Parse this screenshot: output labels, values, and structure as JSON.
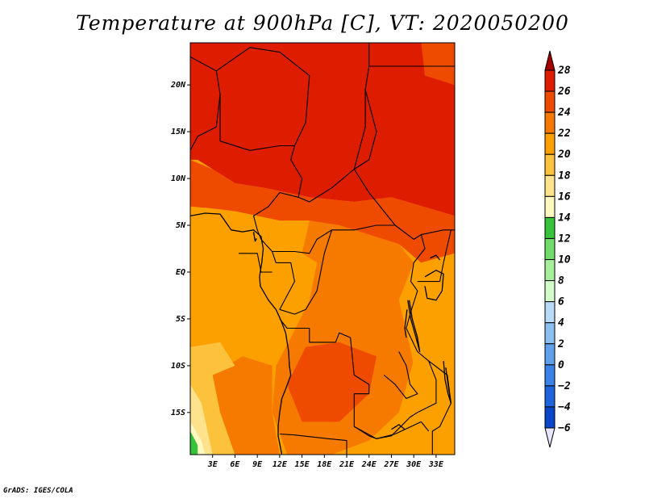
{
  "title": "Temperature at 900hPa [C], VT: 2020050200",
  "credit": "GrADS: IGES/COLA",
  "map": {
    "lon_range": [
      0,
      35.5
    ],
    "lat_range": [
      -19.5,
      24.5
    ],
    "lat_ticks": [
      {
        "value": 20,
        "label": "20N"
      },
      {
        "value": 15,
        "label": "15N"
      },
      {
        "value": 10,
        "label": "10N"
      },
      {
        "value": 5,
        "label": "5N"
      },
      {
        "value": 0,
        "label": "EQ"
      },
      {
        "value": -5,
        "label": "5S"
      },
      {
        "value": -10,
        "label": "10S"
      },
      {
        "value": -15,
        "label": "15S"
      }
    ],
    "lon_ticks": [
      {
        "value": 3,
        "label": "3E"
      },
      {
        "value": 6,
        "label": "6E"
      },
      {
        "value": 9,
        "label": "9E"
      },
      {
        "value": 12,
        "label": "12E"
      },
      {
        "value": 15,
        "label": "15E"
      },
      {
        "value": 18,
        "label": "18E"
      },
      {
        "value": 21,
        "label": "21E"
      },
      {
        "value": 24,
        "label": "24E"
      },
      {
        "value": 27,
        "label": "27E"
      },
      {
        "value": 30,
        "label": "30E"
      },
      {
        "value": 33,
        "label": "33E"
      }
    ],
    "field_regions": [
      {
        "level": 27,
        "points": [
          [
            0,
            24.5
          ],
          [
            35.5,
            24.5
          ],
          [
            35.5,
            6
          ],
          [
            27,
            8
          ],
          [
            22,
            7.5
          ],
          [
            16,
            8
          ],
          [
            13,
            8.5
          ],
          [
            10,
            9
          ],
          [
            6,
            9.5
          ],
          [
            3,
            11
          ],
          [
            1,
            12
          ],
          [
            0,
            12
          ]
        ]
      },
      {
        "level": 25,
        "points": [
          [
            0,
            12
          ],
          [
            3,
            11
          ],
          [
            6,
            9.5
          ],
          [
            10,
            9
          ],
          [
            13,
            8.5
          ],
          [
            16,
            8
          ],
          [
            22,
            7.5
          ],
          [
            27,
            8
          ],
          [
            35.5,
            6
          ],
          [
            35.5,
            2
          ],
          [
            31,
            1
          ],
          [
            28,
            3
          ],
          [
            24,
            4
          ],
          [
            20,
            5
          ],
          [
            16,
            5.5
          ],
          [
            12,
            5.5
          ],
          [
            9,
            6
          ],
          [
            6,
            6.5
          ],
          [
            3,
            6.8
          ],
          [
            0,
            7
          ]
        ]
      },
      {
        "level": 25,
        "points": [
          [
            31,
            24.5
          ],
          [
            35.5,
            24.5
          ],
          [
            35.5,
            20
          ],
          [
            31.5,
            21
          ]
        ]
      },
      {
        "level": 23,
        "points": [
          [
            16,
            5.5
          ],
          [
            20,
            5
          ],
          [
            24,
            4
          ],
          [
            28,
            3
          ],
          [
            30,
            1
          ],
          [
            28,
            -3
          ],
          [
            30.5,
            -8
          ],
          [
            28,
            -15
          ],
          [
            24,
            -18
          ],
          [
            19,
            -19.5
          ],
          [
            13,
            -19.5
          ],
          [
            11,
            -15
          ],
          [
            11.5,
            -10
          ],
          [
            13.5,
            -7
          ],
          [
            16,
            -3
          ],
          [
            17,
            1
          ],
          [
            15,
            2
          ],
          [
            12,
            4
          ]
        ]
      },
      {
        "level": 25,
        "points": [
          [
            15.5,
            -8
          ],
          [
            20,
            -7.5
          ],
          [
            25,
            -9
          ],
          [
            24,
            -13
          ],
          [
            20,
            -16
          ],
          [
            15,
            -16
          ],
          [
            13,
            -12
          ]
        ]
      },
      {
        "level": 21,
        "points": [
          [
            0,
            7
          ],
          [
            3,
            6.8
          ],
          [
            6,
            6.5
          ],
          [
            9,
            6
          ],
          [
            12,
            5.5
          ],
          [
            16,
            5.5
          ],
          [
            15,
            2
          ],
          [
            17,
            1
          ],
          [
            16,
            -3
          ],
          [
            13.5,
            -7
          ],
          [
            11.5,
            -10
          ],
          [
            11,
            -15
          ],
          [
            13,
            -19.5
          ],
          [
            6,
            -19.5
          ],
          [
            4,
            -13
          ],
          [
            0,
            -8
          ]
        ]
      },
      {
        "level": 23,
        "points": [
          [
            3,
            -11
          ],
          [
            7,
            -9
          ],
          [
            11,
            -10
          ],
          [
            11,
            -15
          ],
          [
            12,
            -19.5
          ],
          [
            6,
            -19.5
          ],
          [
            4,
            -15
          ]
        ]
      },
      {
        "level": 21,
        "points": [
          [
            28,
            -3
          ],
          [
            30,
            1
          ],
          [
            31,
            1
          ],
          [
            35.5,
            2
          ],
          [
            35.5,
            -19.5
          ],
          [
            31,
            -19.5
          ],
          [
            30.5,
            -12
          ],
          [
            29.5,
            -8
          ]
        ]
      },
      {
        "level": 19,
        "points": [
          [
            0,
            -8
          ],
          [
            4,
            -7.5
          ],
          [
            6,
            -10
          ],
          [
            3,
            -11
          ],
          [
            4,
            -15
          ],
          [
            6,
            -19.5
          ],
          [
            0,
            -19.5
          ]
        ]
      },
      {
        "level": 17,
        "points": [
          [
            0,
            -12
          ],
          [
            1.5,
            -14
          ],
          [
            3,
            -19.5
          ],
          [
            0,
            -19.5
          ]
        ]
      },
      {
        "level": 15,
        "points": [
          [
            0,
            -16
          ],
          [
            1.5,
            -18
          ],
          [
            2,
            -19.5
          ],
          [
            0,
            -19.5
          ]
        ]
      },
      {
        "level": 13,
        "points": [
          [
            0,
            -17
          ],
          [
            1,
            -18.5
          ],
          [
            1,
            -19.5
          ],
          [
            0,
            -19.5
          ]
        ]
      }
    ],
    "borders": [
      [
        [
          0,
          13
        ],
        [
          1,
          14.5
        ],
        [
          3.5,
          15.5
        ],
        [
          4,
          19
        ],
        [
          3.5,
          21.5
        ],
        [
          0,
          23
        ]
      ],
      [
        [
          3.5,
          21.5
        ],
        [
          8,
          24
        ],
        [
          12,
          23.5
        ],
        [
          16,
          21
        ],
        [
          15.5,
          16
        ],
        [
          14,
          13.5
        ],
        [
          13.5,
          12
        ],
        [
          15,
          10
        ],
        [
          14.5,
          8
        ],
        [
          16,
          7.5
        ],
        [
          19,
          9
        ],
        [
          22,
          11
        ],
        [
          23.5,
          15.5
        ],
        [
          23.5,
          19.5
        ],
        [
          24,
          22
        ],
        [
          24,
          24.5
        ]
      ],
      [
        [
          4,
          19
        ],
        [
          4,
          14
        ],
        [
          8,
          13
        ],
        [
          12,
          13.5
        ],
        [
          14,
          13.5
        ]
      ],
      [
        [
          22,
          11
        ],
        [
          24,
          8.5
        ],
        [
          27.5,
          5
        ],
        [
          30,
          3.5
        ],
        [
          31,
          4
        ],
        [
          34,
          4.5
        ],
        [
          35.5,
          4.5
        ]
      ],
      [
        [
          24,
          22
        ],
        [
          35.5,
          22
        ]
      ],
      [
        [
          23.5,
          19.5
        ],
        [
          25,
          15
        ],
        [
          24,
          12
        ],
        [
          22,
          11
        ]
      ],
      [
        [
          27.5,
          5
        ],
        [
          25,
          5
        ],
        [
          22,
          4.5
        ],
        [
          19,
          4.5
        ],
        [
          17,
          3.5
        ],
        [
          16,
          2
        ],
        [
          14,
          2.2
        ],
        [
          11,
          2.2
        ],
        [
          9.5,
          3.5
        ],
        [
          9,
          4.5
        ],
        [
          8.5,
          6
        ],
        [
          10.5,
          7
        ],
        [
          12,
          8.5
        ],
        [
          14.5,
          8
        ]
      ],
      [
        [
          11,
          2.2
        ],
        [
          11.5,
          1
        ],
        [
          13.5,
          1
        ],
        [
          14,
          -1
        ],
        [
          13,
          -2.5
        ],
        [
          12,
          -4
        ],
        [
          14,
          -4.5
        ],
        [
          15.5,
          -4
        ],
        [
          17,
          -2
        ],
        [
          17.5,
          0
        ],
        [
          18,
          2
        ],
        [
          19,
          4.5
        ]
      ],
      [
        [
          12,
          -5
        ],
        [
          13,
          -6
        ],
        [
          16,
          -6
        ],
        [
          16,
          -7.5
        ],
        [
          19.5,
          -7.5
        ],
        [
          20,
          -6.5
        ],
        [
          21.5,
          -7
        ],
        [
          22,
          -11
        ],
        [
          24,
          -12
        ],
        [
          24,
          -13
        ],
        [
          22,
          -13
        ],
        [
          22,
          -16.5
        ],
        [
          24,
          -17.5
        ],
        [
          25,
          -17.8
        ]
      ],
      [
        [
          12,
          -17.3
        ],
        [
          14,
          -17.4
        ],
        [
          18.5,
          -17.8
        ],
        [
          21,
          -18
        ],
        [
          21,
          -19.5
        ]
      ],
      [
        [
          22,
          -16.5
        ],
        [
          25,
          -17.8
        ],
        [
          27,
          -17.5
        ],
        [
          29.5,
          -15.5
        ],
        [
          30.5,
          -15
        ],
        [
          33,
          -14
        ],
        [
          33,
          -11.5
        ],
        [
          32,
          -9.5
        ],
        [
          30.5,
          -8.5
        ],
        [
          29,
          -6
        ],
        [
          29.5,
          -4.5
        ],
        [
          30.5,
          -2
        ],
        [
          29.6,
          -1
        ],
        [
          30,
          1
        ],
        [
          31.5,
          2.5
        ],
        [
          31,
          4
        ]
      ],
      [
        [
          30.5,
          -1
        ],
        [
          33.5,
          -1
        ],
        [
          34,
          1
        ],
        [
          35,
          4.5
        ]
      ],
      [
        [
          28,
          -8.5
        ],
        [
          29,
          -10
        ],
        [
          29.5,
          -12
        ],
        [
          30.5,
          -13
        ],
        [
          29,
          -13.5
        ],
        [
          27.5,
          -12
        ],
        [
          26,
          -11
        ]
      ],
      [
        [
          32,
          -9.5
        ],
        [
          34.5,
          -11
        ],
        [
          35,
          -14
        ],
        [
          33.5,
          -16.5
        ],
        [
          32.5,
          -17
        ],
        [
          32.5,
          -19.5
        ]
      ],
      [
        [
          25,
          -17.8
        ],
        [
          27.5,
          -17.3
        ],
        [
          31,
          -16
        ],
        [
          32,
          -17
        ]
      ],
      [
        [
          6.5,
          2
        ],
        [
          9,
          2
        ],
        [
          9.5,
          0
        ],
        [
          11,
          0
        ]
      ]
    ],
    "coastline": [
      [
        [
          0,
          6
        ],
        [
          2,
          6.3
        ],
        [
          4,
          6.2
        ],
        [
          5.5,
          4.5
        ],
        [
          7,
          4.3
        ],
        [
          8.5,
          4.5
        ],
        [
          9.5,
          3.8
        ],
        [
          9.8,
          2.5
        ],
        [
          9.6,
          1
        ],
        [
          9.3,
          -0.5
        ],
        [
          9.4,
          -1.5
        ],
        [
          10.5,
          -3
        ],
        [
          11.5,
          -4
        ],
        [
          12.2,
          -5.2
        ],
        [
          12.8,
          -6.5
        ],
        [
          13.2,
          -8.5
        ],
        [
          13.3,
          -10
        ],
        [
          13.5,
          -11
        ],
        [
          12.8,
          -12.5
        ],
        [
          12.3,
          -13.5
        ],
        [
          12,
          -15
        ],
        [
          11.8,
          -16.5
        ],
        [
          11.8,
          -17.5
        ],
        [
          12.3,
          -19.5
        ]
      ],
      [
        [
          8.5,
          4.3
        ],
        [
          8.7,
          3.3
        ],
        [
          8.9,
          3.6
        ]
      ],
      [
        [
          29.2,
          -3
        ],
        [
          29.6,
          -5
        ],
        [
          30.3,
          -7
        ],
        [
          30.8,
          -8.5
        ],
        [
          30.5,
          -7
        ],
        [
          29.8,
          -5
        ],
        [
          29.4,
          -3
        ]
      ],
      [
        [
          29.1,
          -4
        ],
        [
          28.8,
          -6
        ],
        [
          29,
          -7
        ]
      ],
      [
        [
          31.5,
          -0.5
        ],
        [
          33,
          0.2
        ],
        [
          34,
          -0.2
        ],
        [
          33.8,
          -2
        ],
        [
          33,
          -3
        ],
        [
          31.8,
          -2.8
        ],
        [
          31.5,
          -1.5
        ]
      ],
      [
        [
          32.2,
          1.5
        ],
        [
          33,
          1.8
        ],
        [
          33.5,
          1.3
        ]
      ],
      [
        [
          34,
          -9.5
        ],
        [
          34.2,
          -11.5
        ],
        [
          34.6,
          -13
        ],
        [
          35,
          -14
        ],
        [
          34.6,
          -12
        ],
        [
          34.3,
          -10.2
        ]
      ],
      [
        [
          27,
          -16.8
        ],
        [
          28,
          -16.3
        ],
        [
          28.8,
          -16.8
        ]
      ]
    ]
  },
  "colorbar": {
    "levels": [
      28,
      26,
      24,
      22,
      20,
      18,
      16,
      14,
      12,
      10,
      8,
      6,
      4,
      2,
      0,
      -2,
      -4,
      -6
    ],
    "labels": [
      "28",
      "26",
      "24",
      "22",
      "20",
      "18",
      "16",
      "14",
      "12",
      "10",
      "8",
      "6",
      "4",
      "2",
      "0",
      "−2",
      "−4",
      "−6"
    ],
    "colors": [
      "#a50000",
      "#de1d00",
      "#ef4b00",
      "#f77a00",
      "#fca000",
      "#fdc23c",
      "#fee28c",
      "#fff8c0",
      "#37c23c",
      "#6fdc6c",
      "#a6ee9c",
      "#d4fcca",
      "#b8dcf8",
      "#8cbef0",
      "#60a0ea",
      "#3c82e6",
      "#1e64dc",
      "#0a46c8",
      "#0a28a0",
      "#0a0a6e",
      "#e6e6fe"
    ]
  },
  "colors": {
    "top_arrow": "#a50000",
    "bottom_arrow": "#e6e6fe"
  }
}
